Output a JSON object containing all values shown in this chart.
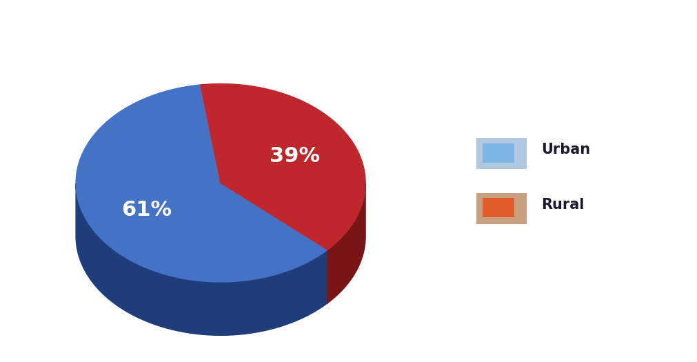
{
  "labels": [
    "Urban",
    "Rural"
  ],
  "values": [
    61,
    39
  ],
  "colors": [
    "#4472C4",
    "#C0272D"
  ],
  "dark_colors": [
    "#1F3D7A",
    "#7A1515"
  ],
  "label_colors": [
    "white",
    "white"
  ],
  "pct_labels": [
    "61%",
    "39%"
  ],
  "legend_face_colors": [
    "#7EB4E3",
    "#E05C2C"
  ],
  "legend_border_colors": [
    "#B0C8E0",
    "#C8A080"
  ],
  "background_color": "#FFFFFF",
  "label_fontsize": 22,
  "legend_fontsize": 15,
  "startangle": 98
}
